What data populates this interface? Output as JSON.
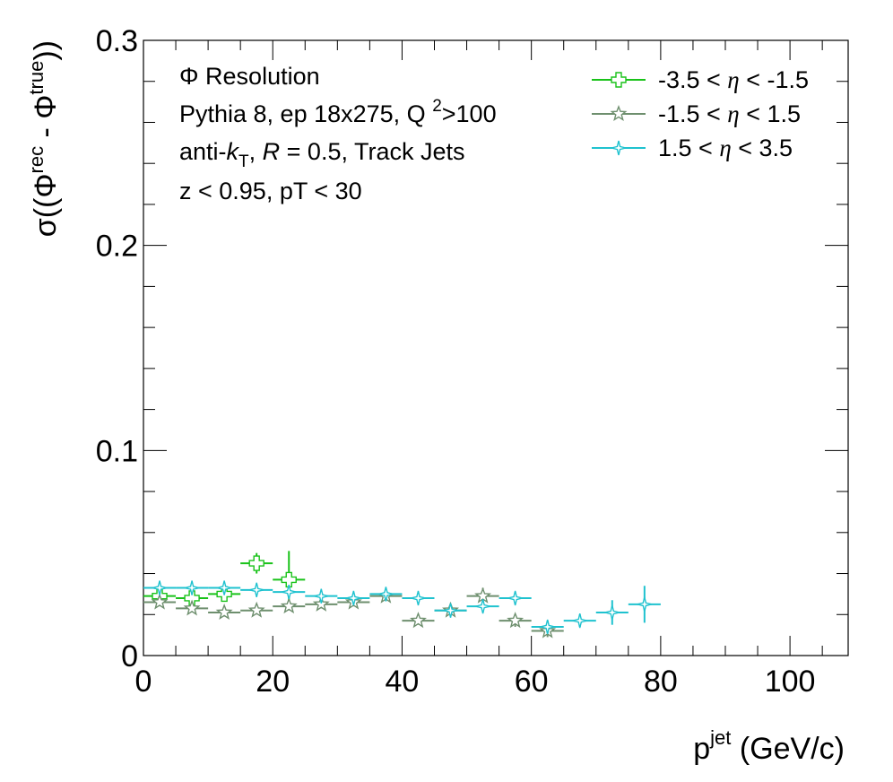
{
  "chart_data": {
    "type": "scatter",
    "xlim": [
      0,
      109
    ],
    "ylim": [
      0,
      0.3
    ],
    "x_ticks": [
      0,
      20,
      40,
      60,
      80,
      100
    ],
    "x_tick_labels": [
      "0",
      "20",
      "40",
      "60",
      "80",
      "100"
    ],
    "y_ticks": [
      0,
      0.1,
      0.2,
      0.3
    ],
    "y_tick_labels": [
      "0",
      "0.1",
      "0.2",
      "0.3"
    ],
    "xlabel": {
      "base": "p",
      "sup": "jet",
      "tail": " (GeV/c)"
    },
    "ylabel": {
      "pre": "σ((Φ",
      "sup1": "rec",
      "mid": " - Φ",
      "sup2": "true",
      "post": "))"
    },
    "annotations": {
      "line1": "Φ Resolution",
      "line2_pre": "Pythia 8, ep 18x275, Q ",
      "line2_sup": "2",
      "line2_post": ">100",
      "line3_pre": "anti-",
      "line3_k": "k",
      "line3_sub": "T",
      "line3_mid": ", ",
      "line3_R": "R",
      "line3_post": " = 0.5, Track Jets",
      "line4": "z < 0.95, pT < 30"
    },
    "legend_position": "top-right",
    "series": [
      {
        "name": "-3.5 <  η < -1.5",
        "legend_pre": "-3.5 <  ",
        "legend_eta": "η",
        "legend_post": " < -1.5",
        "color": "#19c219",
        "marker": "open-cross",
        "x": [
          2.5,
          7.5,
          12.5,
          17.5,
          22.5
        ],
        "y": [
          0.029,
          0.028,
          0.03,
          0.045,
          0.037
        ],
        "xerr": [
          2.5,
          2.5,
          2.5,
          2.5,
          2.5
        ],
        "yerr": [
          0.002,
          0.002,
          0.003,
          0.005,
          0.014
        ]
      },
      {
        "name": "-1.5 <  η < 1.5",
        "legend_pre": "-1.5 <  ",
        "legend_eta": "η",
        "legend_post": " < 1.5",
        "color": "#6e8f6e",
        "marker": "open-star",
        "x": [
          2.5,
          7.5,
          12.5,
          17.5,
          22.5,
          27.5,
          32.5,
          37.5,
          42.5,
          47.5,
          52.5,
          57.5,
          62.5
        ],
        "y": [
          0.026,
          0.023,
          0.021,
          0.022,
          0.024,
          0.025,
          0.026,
          0.029,
          0.017,
          0.022,
          0.029,
          0.017,
          0.012
        ],
        "xerr": [
          2.5,
          2.5,
          2.5,
          2.5,
          2.5,
          2.5,
          2.5,
          2.5,
          2.5,
          2.5,
          2.5,
          2.5,
          2.5
        ],
        "yerr": [
          0.002,
          0.002,
          0.002,
          0.002,
          0.002,
          0.002,
          0.002,
          0.002,
          0.002,
          0.002,
          0.004,
          0.003,
          0.003
        ]
      },
      {
        "name": "1.5 <  η < 3.5",
        "legend_pre": "1.5 <  ",
        "legend_eta": "η",
        "legend_post": " < 3.5",
        "color": "#1fc2cf",
        "marker": "open-four-star",
        "x": [
          2.5,
          7.5,
          12.5,
          17.5,
          22.5,
          27.5,
          32.5,
          37.5,
          42.5,
          47.5,
          52.5,
          57.5,
          62.5,
          67.5,
          72.5,
          77.5
        ],
        "y": [
          0.033,
          0.033,
          0.033,
          0.032,
          0.031,
          0.029,
          0.028,
          0.03,
          0.028,
          0.022,
          0.024,
          0.028,
          0.014,
          0.017,
          0.021,
          0.025
        ],
        "xerr": [
          2.5,
          2.5,
          2.5,
          2.5,
          2.5,
          2.5,
          2.5,
          2.5,
          2.5,
          2.5,
          2.5,
          2.5,
          2.5,
          2.5,
          2.5,
          2.5
        ],
        "yerr": [
          0.002,
          0.002,
          0.002,
          0.002,
          0.002,
          0.002,
          0.002,
          0.002,
          0.002,
          0.002,
          0.003,
          0.003,
          0.003,
          0.003,
          0.006,
          0.009
        ]
      }
    ]
  }
}
